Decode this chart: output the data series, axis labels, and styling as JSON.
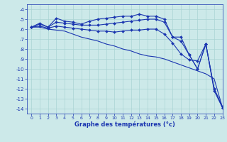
{
  "title": "Graphe des températures (°c)",
  "bg_color": "#cce9e9",
  "grid_color": "#aad4d4",
  "line_color": "#1a35b0",
  "xlim": [
    -0.5,
    23
  ],
  "ylim": [
    -14.5,
    -3.5
  ],
  "xticks": [
    0,
    1,
    2,
    3,
    4,
    5,
    6,
    7,
    8,
    9,
    10,
    11,
    12,
    13,
    14,
    15,
    16,
    17,
    18,
    19,
    20,
    21,
    22,
    23
  ],
  "yticks": [
    -4,
    -5,
    -6,
    -7,
    -8,
    -9,
    -10,
    -11,
    -12,
    -13,
    -14
  ],
  "curve1_x": [
    0,
    1,
    2,
    3,
    4,
    5,
    6,
    7,
    8,
    9,
    10,
    11,
    12,
    13,
    14,
    15,
    16,
    17,
    18,
    19,
    20,
    21,
    22,
    23
  ],
  "curve1_y": [
    -5.8,
    -5.4,
    -5.8,
    -4.9,
    -5.2,
    -5.3,
    -5.5,
    -5.2,
    -5.0,
    -4.9,
    -4.8,
    -4.7,
    -4.7,
    -4.5,
    -4.7,
    -4.7,
    -5.0,
    -6.8,
    -6.8,
    -8.6,
    -10.0,
    -7.5,
    -12.0,
    -13.8
  ],
  "curve2_x": [
    0,
    1,
    2,
    3,
    4,
    5,
    6,
    7,
    8,
    9,
    10,
    11,
    12,
    13,
    14,
    15,
    16,
    17,
    18,
    19,
    20,
    21,
    22,
    23
  ],
  "curve2_y": [
    -5.8,
    -5.5,
    -5.8,
    -5.3,
    -5.4,
    -5.5,
    -5.6,
    -5.6,
    -5.6,
    -5.5,
    -5.4,
    -5.3,
    -5.2,
    -5.1,
    -5.0,
    -5.0,
    -5.3,
    -6.8,
    -7.2,
    -8.6,
    -10.0,
    -7.5,
    -12.0,
    -13.9
  ],
  "curve3_x": [
    0,
    1,
    2,
    3,
    4,
    5,
    6,
    7,
    8,
    9,
    10,
    11,
    12,
    13,
    14,
    15,
    16,
    17,
    18,
    19,
    20,
    21,
    22,
    23
  ],
  "curve3_y": [
    -5.8,
    -5.7,
    -5.9,
    -5.7,
    -5.8,
    -5.9,
    -6.0,
    -6.1,
    -6.2,
    -6.2,
    -6.3,
    -6.2,
    -6.1,
    -6.1,
    -6.0,
    -6.0,
    -6.5,
    -7.4,
    -8.5,
    -9.1,
    -9.2,
    -7.5,
    -12.2,
    -13.9
  ],
  "curve4_x": [
    0,
    1,
    2,
    3,
    4,
    5,
    6,
    7,
    8,
    9,
    10,
    11,
    12,
    13,
    14,
    15,
    16,
    17,
    18,
    19,
    20,
    21,
    22,
    23
  ],
  "curve4_y": [
    -5.8,
    -5.8,
    -6.0,
    -6.1,
    -6.2,
    -6.5,
    -6.8,
    -7.0,
    -7.2,
    -7.5,
    -7.7,
    -8.0,
    -8.2,
    -8.5,
    -8.7,
    -8.8,
    -9.0,
    -9.3,
    -9.6,
    -9.9,
    -10.2,
    -10.5,
    -11.0,
    -13.9
  ]
}
